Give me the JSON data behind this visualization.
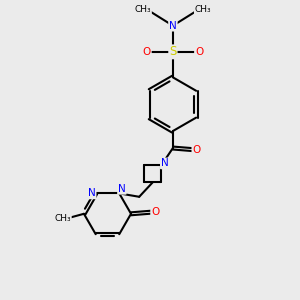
{
  "bg_color": "#ebebeb",
  "bond_color": "#000000",
  "bond_width": 1.5,
  "figsize": [
    3.0,
    3.0
  ],
  "dpi": 100,
  "xlim": [
    0.5,
    8.5
  ],
  "ylim": [
    0.5,
    9.5
  ],
  "atoms": {
    "S_color": "#cccc00",
    "O_color": "#ff0000",
    "N_color": "#0000ff",
    "C_color": "#000000"
  },
  "fontsize": 7.5
}
